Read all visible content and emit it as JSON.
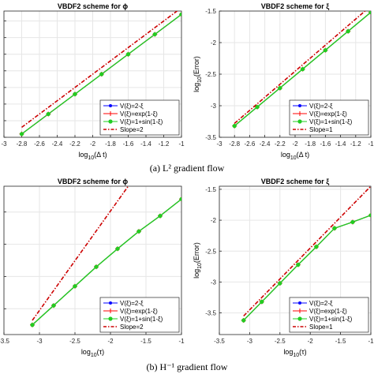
{
  "captions": {
    "a": "(a)  L² gradient flow",
    "b": "(b)  H⁻¹ gradient flow"
  },
  "colors": {
    "series1": "#0000ff",
    "series2": "#ff0000",
    "series3": "#22cc22",
    "slope": "#cc0000",
    "grid": "#e6e6e6"
  },
  "chart_data": [
    {
      "id": "a-left",
      "type": "line",
      "title": "VBDF2 scheme for ϕ",
      "xlabel": "log10(Δ t)",
      "ylabel": "",
      "xlim": [
        -3,
        -1
      ],
      "ylim": [
        -5.5,
        -1.7
      ],
      "xticks": [
        -3,
        -2.8,
        -2.6,
        -2.4,
        -2.2,
        -2,
        -1.8,
        -1.6,
        -1.4,
        -1.2,
        -1
      ],
      "xtick_labels": [
        "-3",
        "-2.8",
        "-2.6",
        "-2.4",
        "-2.2",
        "-2",
        "-1.8",
        "-1.6",
        "-1.4",
        "-1.2",
        "-1"
      ],
      "yticks": [
        -5.5,
        -5,
        -4.5,
        -4,
        -3.5,
        -3,
        -2.5,
        -2
      ],
      "ytick_labels": [],
      "grid": true,
      "legend_position": "bottom-right",
      "x": [
        -2.8,
        -2.5,
        -2.2,
        -1.9,
        -1.6,
        -1.3,
        -1
      ],
      "series": [
        {
          "name": "V(ξ)=2-ξ",
          "values": [
            -5.4,
            -4.8,
            -4.2,
            -3.6,
            -3.0,
            -2.4,
            -1.8
          ]
        },
        {
          "name": "V(ξ)=exp(1-ξ)",
          "values": [
            -5.4,
            -4.8,
            -4.2,
            -3.6,
            -3.0,
            -2.4,
            -1.8
          ]
        },
        {
          "name": "V(ξ)=1+sin(1-ξ)",
          "values": [
            -5.4,
            -4.8,
            -4.2,
            -3.6,
            -3.0,
            -2.4,
            -1.8
          ]
        }
      ],
      "reference": {
        "name": "Slope=2",
        "x": [
          -2.8,
          -1
        ],
        "y": [
          -5.2,
          -1.6
        ]
      }
    },
    {
      "id": "a-right",
      "type": "line",
      "title": "VBDF2 scheme for ξ",
      "xlabel": "log10(Δ t)",
      "ylabel": "log10(Error)",
      "xlim": [
        -3,
        -1
      ],
      "ylim": [
        -3.5,
        -1.5
      ],
      "xticks": [
        -3,
        -2.8,
        -2.6,
        -2.4,
        -2.2,
        -2,
        -1.8,
        -1.6,
        -1.4,
        -1.2,
        -1
      ],
      "xtick_labels": [
        "-3",
        "-2.8",
        "-2.6",
        "-2.4",
        "-2.2",
        "-2",
        "-1.8",
        "-1.6",
        "-1.4",
        "-1.2",
        "-1"
      ],
      "yticks": [
        -3.5,
        -3,
        -2.5,
        -2,
        -1.5
      ],
      "ytick_labels": [
        "-3.5",
        "-3",
        "-2.5",
        "-2",
        "-1.5"
      ],
      "grid": true,
      "legend_position": "bottom-right",
      "x": [
        -2.8,
        -2.5,
        -2.2,
        -1.9,
        -1.6,
        -1.3,
        -1
      ],
      "series": [
        {
          "name": "V(ξ)=2-ξ",
          "values": [
            -3.32,
            -3.02,
            -2.72,
            -2.42,
            -2.12,
            -1.82,
            -1.52
          ]
        },
        {
          "name": "V(ξ)=exp(1-ξ)",
          "values": [
            -3.32,
            -3.02,
            -2.72,
            -2.42,
            -2.12,
            -1.82,
            -1.52
          ]
        },
        {
          "name": "V(ξ)=1+sin(1-ξ)",
          "values": [
            -3.32,
            -3.02,
            -2.72,
            -2.42,
            -2.12,
            -1.82,
            -1.52
          ]
        }
      ],
      "reference": {
        "name": "Slope=1",
        "x": [
          -2.8,
          -1
        ],
        "y": [
          -3.28,
          -1.42
        ]
      }
    },
    {
      "id": "b-left",
      "type": "line",
      "title": "VBDF2 scheme for ϕ",
      "xlabel": "log10(τ)",
      "ylabel": "",
      "xlim": [
        -3.5,
        -1
      ],
      "ylim": [
        -4.4,
        -2.1
      ],
      "xticks": [
        -3.5,
        -3,
        -2.5,
        -2,
        -1.5,
        -1
      ],
      "xtick_labels": [
        "-3.5",
        "-3",
        "-2.5",
        "-2",
        "-1.5",
        "-1"
      ],
      "yticks": [
        -4.5,
        -4,
        -3.5,
        -3,
        -2.5
      ],
      "ytick_labels": [],
      "grid": true,
      "legend_position": "bottom-right",
      "x": [
        -3.1,
        -2.8,
        -2.5,
        -2.2,
        -1.9,
        -1.6,
        -1.3,
        -1
      ],
      "series": [
        {
          "name": "V(ξ)=2-ξ",
          "values": [
            -4.25,
            -3.95,
            -3.65,
            -3.35,
            -3.07,
            -2.8,
            -2.56,
            -2.3
          ]
        },
        {
          "name": "V(ξ)=exp(1-ξ)",
          "values": [
            -4.25,
            -3.95,
            -3.65,
            -3.35,
            -3.07,
            -2.8,
            -2.56,
            -2.3
          ]
        },
        {
          "name": "V(ξ)=1+sin(1-ξ)",
          "values": [
            -4.25,
            -3.95,
            -3.65,
            -3.35,
            -3.07,
            -2.8,
            -2.56,
            -2.3
          ]
        }
      ],
      "reference": {
        "name": "Slope=2",
        "x": [
          -3.1,
          -1.75
        ],
        "y": [
          -4.18,
          -2.1
        ]
      }
    },
    {
      "id": "b-right",
      "type": "line",
      "title": "VBDF2 scheme for ξ",
      "xlabel": "log10(τ)",
      "ylabel": "log10(Error)",
      "xlim": [
        -3.5,
        -1
      ],
      "ylim": [
        -3.85,
        -1.45
      ],
      "xticks": [
        -3.5,
        -3,
        -2.5,
        -2,
        -1.5,
        -1
      ],
      "xtick_labels": [
        "-3.5",
        "-3",
        "-2.5",
        "-2",
        "-1.5",
        "-1"
      ],
      "yticks": [
        -3.5,
        -3,
        -2.5,
        -2,
        -1.5
      ],
      "ytick_labels": [
        "-3.5",
        "-3",
        "-2.5",
        "-2",
        "-1.5"
      ],
      "grid": true,
      "legend_position": "bottom-right",
      "x": [
        -3.1,
        -2.8,
        -2.5,
        -2.2,
        -1.9,
        -1.6,
        -1.3,
        -1
      ],
      "series": [
        {
          "name": "V(ξ)=2-ξ",
          "values": [
            -3.62,
            -3.32,
            -3.02,
            -2.72,
            -2.43,
            -2.13,
            -2.03,
            -1.92
          ]
        },
        {
          "name": "V(ξ)=exp(1-ξ)",
          "values": [
            -3.62,
            -3.32,
            -3.02,
            -2.72,
            -2.43,
            -2.13,
            -2.03,
            -1.92
          ]
        },
        {
          "name": "V(ξ)=1+sin(1-ξ)",
          "values": [
            -3.62,
            -3.32,
            -3.02,
            -2.72,
            -2.43,
            -2.13,
            -2.03,
            -1.92
          ]
        }
      ],
      "reference": {
        "name": "Slope=1",
        "x": [
          -3.1,
          -1
        ],
        "y": [
          -3.55,
          -1.45
        ]
      }
    }
  ]
}
